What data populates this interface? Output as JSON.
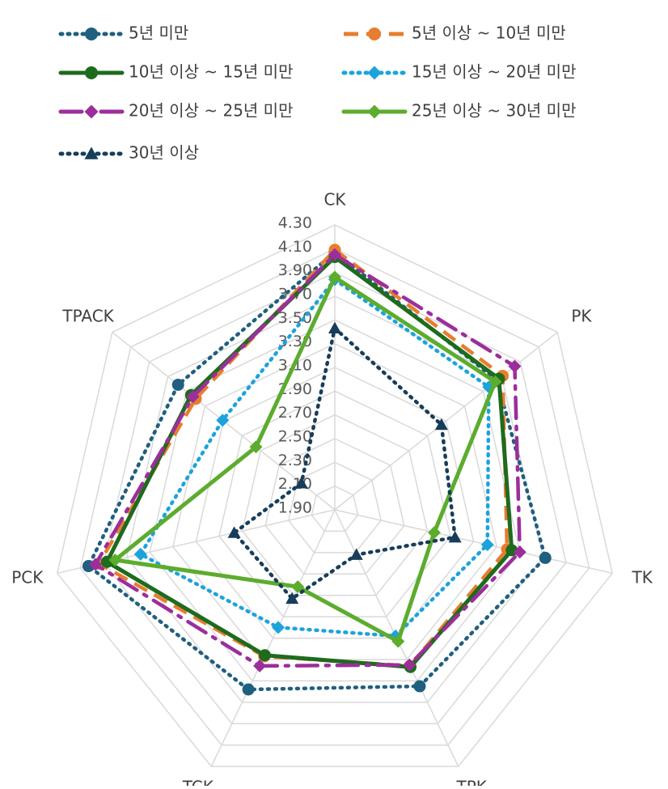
{
  "chart_data": {
    "type": "radar",
    "categories": [
      "CK",
      "PK",
      "TK",
      "TPK",
      "TCK",
      "PCK",
      "TPACK"
    ],
    "rlim": [
      1.9,
      4.3
    ],
    "rticks": [
      {
        "value": 1.9,
        "label": "1.90"
      },
      {
        "value": 2.1,
        "label": "2.10"
      },
      {
        "value": 2.3,
        "label": "2.30"
      },
      {
        "value": 2.5,
        "label": "2.50"
      },
      {
        "value": 2.7,
        "label": "2.70"
      },
      {
        "value": 2.9,
        "label": "2.90"
      },
      {
        "value": 3.1,
        "label": "3.10"
      },
      {
        "value": 3.3,
        "label": "3.30"
      },
      {
        "value": 3.5,
        "label": "3.50"
      },
      {
        "value": 3.7,
        "label": "3.70"
      },
      {
        "value": 3.9,
        "label": "3.90"
      },
      {
        "value": 4.1,
        "label": "4.10"
      },
      {
        "value": 4.3,
        "label": "4.30"
      }
    ],
    "grid": true,
    "legend": "top",
    "series": [
      {
        "name": "5년 미만",
        "color": "#1f5f7f",
        "dash": "dotted",
        "marker": "circle",
        "values": [
          4.07,
          3.65,
          3.72,
          3.55,
          3.58,
          4.03,
          3.59
        ]
      },
      {
        "name": "5년 이상 ~ 10년 미만",
        "color": "#e87d2f",
        "dash": "dashed",
        "marker": "circle",
        "values": [
          4.09,
          3.71,
          3.39,
          3.36,
          3.27,
          3.94,
          3.4
        ]
      },
      {
        "name": "10년 이상 ~ 15년 미만",
        "color": "#1e6b1e",
        "dash": "solid",
        "marker": "circle",
        "values": [
          4.03,
          3.67,
          3.43,
          3.37,
          3.26,
          3.87,
          3.45
        ]
      },
      {
        "name": "15년 이상 ~ 20년 미만",
        "color": "#1ca3dc",
        "dash": "dotted",
        "marker": "diamond",
        "values": [
          3.84,
          3.56,
          3.22,
          3.08,
          3.0,
          3.58,
          3.11
        ]
      },
      {
        "name": "20년 이상 ~ 25년 미만",
        "color": "#9c2e9c",
        "dash": "dashdot",
        "marker": "diamond",
        "values": [
          4.05,
          3.84,
          3.5,
          3.35,
          3.36,
          3.97,
          3.43
        ]
      },
      {
        "name": "25년 이상 ~ 30년 미만",
        "color": "#5cac2d",
        "dash": "solid",
        "marker": "diamond",
        "values": [
          3.86,
          3.63,
          2.76,
          3.13,
          2.62,
          3.8,
          2.75
        ]
      },
      {
        "name": "30년 이상",
        "color": "#173d5a",
        "dash": "dotted",
        "marker": "triangle",
        "values": [
          3.43,
          3.05,
          2.94,
          2.32,
          2.73,
          2.77,
          2.26
        ]
      }
    ]
  }
}
